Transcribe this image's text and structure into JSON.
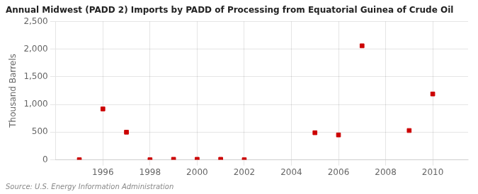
{
  "chart_data": {
    "type": "scatter",
    "title": "Annual Midwest (PADD 2) Imports by PADD of Processing from Equatorial Guinea of Crude Oil",
    "ylabel": "Thousand Barrels",
    "annotations": [
      "Source: U.S. Energy Information Administration"
    ],
    "x": [
      1995,
      1996,
      1997,
      1998,
      1999,
      2000,
      2001,
      2002,
      2005,
      2006,
      2007,
      2009,
      2010
    ],
    "values": [
      2,
      920,
      500,
      2,
      10,
      10,
      10,
      2,
      490,
      450,
      2060,
      530,
      1190
    ],
    "color": "#cc0000",
    "marker": "square",
    "xlim": [
      1994.0,
      2011.5
    ],
    "xticks": [
      1996,
      1998,
      2000,
      2002,
      2004,
      2006,
      2008,
      2010
    ],
    "ylim": [
      0,
      2500
    ],
    "yticks": [
      0,
      500,
      {
        "value": 1000,
        "label": "1,000"
      },
      {
        "value": 1500,
        "label": "1,500"
      },
      {
        "value": 2000,
        "label": "2,000"
      },
      {
        "value": 2500,
        "label": "2,500"
      }
    ],
    "grid": true
  }
}
